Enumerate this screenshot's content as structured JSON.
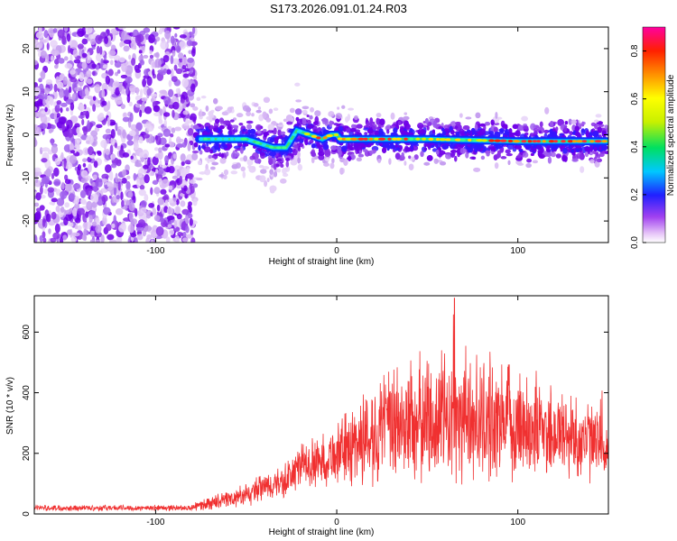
{
  "title": "S173.2026.091.01.24.R03",
  "chart_data": [
    {
      "type": "heatmap",
      "name": "spectrogram",
      "xlabel": "Height of straight line (km)",
      "ylabel": "Frequency (Hz)",
      "xlim": [
        -167,
        150
      ],
      "ylim": [
        -25,
        25
      ],
      "xticks": [
        -100,
        0,
        100
      ],
      "xtick_labels": [
        "-100",
        "0",
        "100"
      ],
      "yticks": [
        -20,
        -10,
        0,
        10,
        20
      ],
      "ytick_labels": [
        "-20",
        "-10",
        "0",
        "10",
        "20"
      ],
      "noise_region_end_km": -78,
      "ridge": [
        {
          "x": -75,
          "y": -1
        },
        {
          "x": -50,
          "y": -1
        },
        {
          "x": -35,
          "y": -3
        },
        {
          "x": -28,
          "y": -3
        },
        {
          "x": -22,
          "y": 1
        },
        {
          "x": -15,
          "y": 0
        },
        {
          "x": -8,
          "y": -1
        },
        {
          "x": -3,
          "y": 0
        },
        {
          "x": 0,
          "y": 0
        },
        {
          "x": 2,
          "y": -1
        },
        {
          "x": 10,
          "y": -1
        },
        {
          "x": 50,
          "y": -1
        },
        {
          "x": 100,
          "y": -1.5
        },
        {
          "x": 150,
          "y": -1.5
        }
      ],
      "colorbar": {
        "label": "Normalized spectral amplitude",
        "range": [
          0,
          0.9
        ],
        "ticks": [
          0.0,
          0.2,
          0.4,
          0.6,
          0.8
        ],
        "tick_labels": [
          "0.0",
          "0.2",
          "0.4",
          "0.6",
          "0.8"
        ]
      }
    },
    {
      "type": "line",
      "name": "snr",
      "xlabel": "Height of straight line (km)",
      "ylabel": "SNR (10 * v/v)",
      "xlim": [
        -167,
        150
      ],
      "ylim": [
        0,
        720
      ],
      "xticks": [
        -100,
        0,
        100
      ],
      "xtick_labels": [
        "-100",
        "0",
        "100"
      ],
      "yticks": [
        0,
        200,
        400,
        600
      ],
      "ytick_labels": [
        "0",
        "200",
        "400",
        "600"
      ],
      "color": "#f03030",
      "envelope": {
        "x": [
          -167,
          -80,
          -75,
          -50,
          -40,
          -30,
          -20,
          -10,
          0,
          10,
          15,
          20,
          30,
          40,
          60,
          80,
          100,
          120,
          140,
          150
        ],
        "mid": [
          20,
          20,
          30,
          60,
          90,
          100,
          160,
          170,
          200,
          230,
          250,
          270,
          290,
          300,
          320,
          310,
          300,
          270,
          240,
          210
        ],
        "amp": [
          8,
          8,
          15,
          30,
          40,
          45,
          60,
          70,
          80,
          120,
          130,
          140,
          160,
          170,
          180,
          170,
          150,
          130,
          110,
          90
        ]
      },
      "peak": {
        "x": 65,
        "y": 712
      }
    }
  ]
}
